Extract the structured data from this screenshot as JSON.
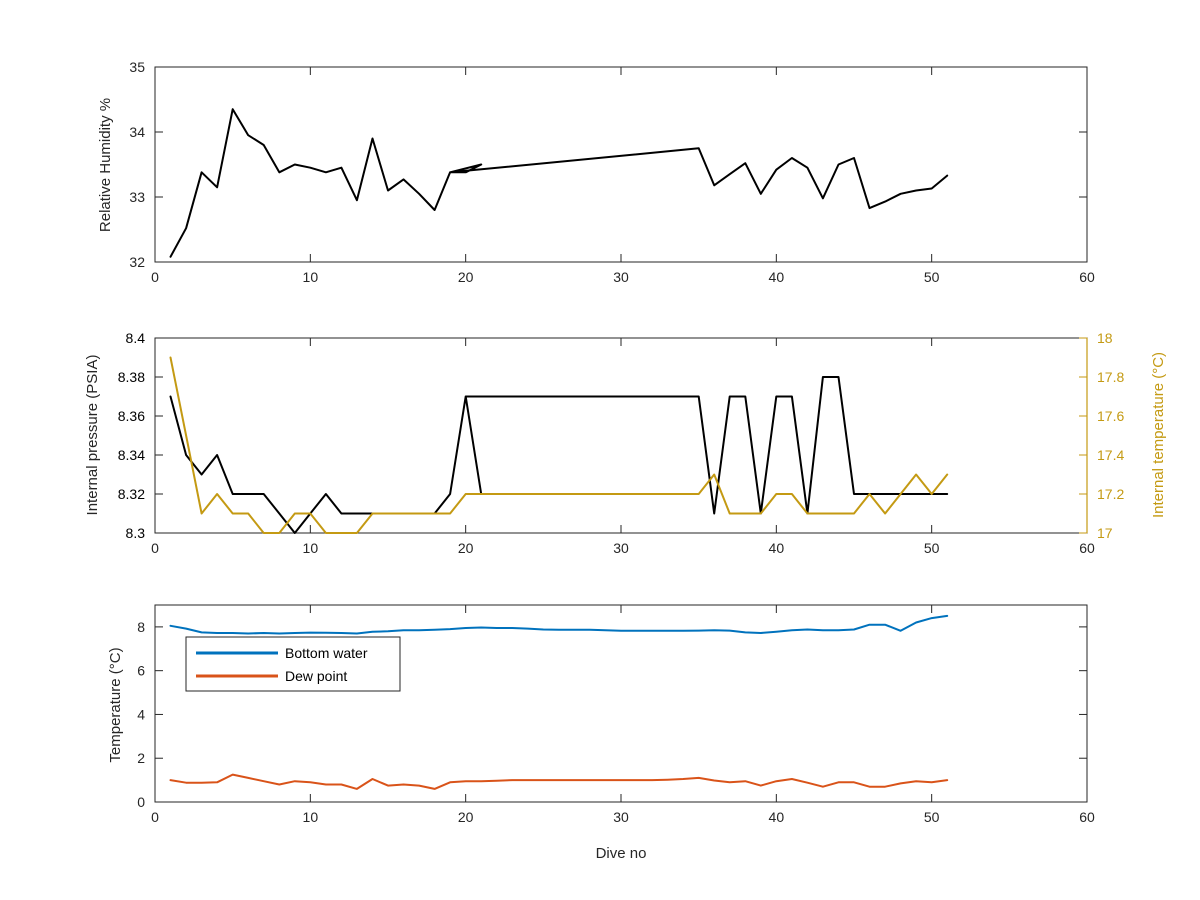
{
  "colors": {
    "pressure": "#000000",
    "internal_temp": "#C49A13",
    "bottom_water": "#0072BD",
    "dew_point": "#D95319",
    "axes": "#262626"
  },
  "chart_data": [
    {
      "type": "line",
      "xlabel": "",
      "ylabel": "Relative Humidity %",
      "xlim": [
        0,
        60
      ],
      "ylim": [
        32,
        35
      ],
      "xticks": [
        "0",
        "10",
        "20",
        "30",
        "40",
        "50",
        "60"
      ],
      "yticks": [
        "32",
        "33",
        "34",
        "35"
      ],
      "series": [
        {
          "x": [
            1,
            2,
            3,
            4,
            5,
            6,
            7,
            8,
            9,
            10,
            11,
            12,
            13,
            14,
            15,
            16,
            17,
            18,
            19,
            20,
            21,
            19,
            35,
            36,
            37,
            38,
            39,
            40,
            41,
            42,
            43,
            44,
            45,
            46,
            47,
            48,
            49,
            50,
            51
          ],
          "values": [
            32.08,
            32.52,
            33.38,
            33.15,
            34.35,
            33.95,
            33.8,
            33.38,
            33.5,
            33.45,
            33.38,
            33.45,
            32.95,
            33.9,
            33.1,
            33.27,
            33.05,
            32.8,
            33.38,
            33.38,
            33.5,
            33.38,
            33.75,
            33.18,
            33.35,
            33.52,
            33.05,
            33.42,
            33.6,
            33.45,
            32.98,
            33.5,
            33.6,
            32.83,
            32.93,
            33.05,
            33.1,
            33.13,
            33.33
          ]
        }
      ]
    },
    {
      "type": "line",
      "xlabel": "",
      "ylabel": "Internal pressure (PSIA)",
      "y2label": "Internal temperature (°C)",
      "xlim": [
        0,
        60
      ],
      "ylim": [
        8.3,
        8.4
      ],
      "y2lim": [
        17,
        18
      ],
      "xticks": [
        "0",
        "10",
        "20",
        "30",
        "40",
        "50",
        "60"
      ],
      "yticks": [
        "8.3",
        "8.32",
        "8.34",
        "8.36",
        "8.38",
        "8.4"
      ],
      "y2ticks": [
        "17",
        "17.2",
        "17.4",
        "17.6",
        "17.8",
        "18"
      ],
      "series": [
        {
          "axis": "left",
          "x": [
            1,
            2,
            3,
            4,
            5,
            6,
            7,
            8,
            9,
            10,
            11,
            12,
            13,
            14,
            15,
            16,
            17,
            18,
            19,
            20,
            21,
            20,
            35,
            36,
            37,
            38,
            39,
            40,
            41,
            42,
            43,
            44,
            45,
            46,
            47,
            48,
            49,
            50,
            51
          ],
          "values": [
            8.37,
            8.34,
            8.33,
            8.34,
            8.32,
            8.32,
            8.32,
            8.31,
            8.3,
            8.31,
            8.32,
            8.31,
            8.31,
            8.31,
            8.31,
            8.31,
            8.31,
            8.31,
            8.32,
            8.37,
            8.32,
            8.37,
            8.37,
            8.31,
            8.37,
            8.37,
            8.31,
            8.37,
            8.37,
            8.31,
            8.38,
            8.38,
            8.32,
            8.32,
            8.32,
            8.32,
            8.32,
            8.32,
            8.32
          ]
        },
        {
          "axis": "right",
          "x": [
            1,
            2,
            3,
            4,
            5,
            6,
            7,
            8,
            9,
            10,
            11,
            12,
            13,
            14,
            15,
            16,
            17,
            18,
            19,
            20,
            21,
            22,
            23,
            24,
            25,
            26,
            27,
            28,
            29,
            30,
            31,
            32,
            33,
            34,
            35,
            36,
            37,
            38,
            39,
            40,
            41,
            42,
            43,
            44,
            45,
            46,
            47,
            48,
            49,
            50,
            51
          ],
          "values": [
            17.9,
            17.5,
            17.1,
            17.2,
            17.1,
            17.1,
            17.0,
            17.0,
            17.1,
            17.1,
            17.0,
            17.0,
            17.0,
            17.1,
            17.1,
            17.1,
            17.1,
            17.1,
            17.1,
            17.2,
            17.2,
            17.2,
            17.2,
            17.2,
            17.2,
            17.2,
            17.2,
            17.2,
            17.2,
            17.2,
            17.2,
            17.2,
            17.2,
            17.2,
            17.2,
            17.3,
            17.1,
            17.1,
            17.1,
            17.2,
            17.2,
            17.1,
            17.1,
            17.1,
            17.1,
            17.2,
            17.1,
            17.2,
            17.3,
            17.2,
            17.3
          ]
        }
      ]
    },
    {
      "type": "line",
      "xlabel": "Dive no",
      "ylabel": "Temperature (°C)",
      "xlim": [
        0,
        60
      ],
      "ylim": [
        0,
        9
      ],
      "xticks": [
        "0",
        "10",
        "20",
        "30",
        "40",
        "50",
        "60"
      ],
      "yticks": [
        "0",
        "2",
        "4",
        "6",
        "8"
      ],
      "legend_position": "top-left",
      "series": [
        {
          "name": "Bottom water",
          "x": [
            1,
            2,
            3,
            4,
            5,
            6,
            7,
            8,
            9,
            10,
            11,
            12,
            13,
            14,
            15,
            16,
            17,
            18,
            19,
            20,
            21,
            22,
            23,
            24,
            25,
            26,
            27,
            28,
            29,
            30,
            31,
            32,
            33,
            34,
            35,
            36,
            37,
            38,
            39,
            40,
            41,
            42,
            43,
            44,
            45,
            46,
            47,
            48,
            49,
            50,
            51
          ],
          "values": [
            8.05,
            7.92,
            7.75,
            7.72,
            7.72,
            7.7,
            7.72,
            7.7,
            7.72,
            7.74,
            7.73,
            7.72,
            7.7,
            7.78,
            7.8,
            7.85,
            7.85,
            7.87,
            7.9,
            7.95,
            7.97,
            7.95,
            7.95,
            7.92,
            7.88,
            7.87,
            7.87,
            7.87,
            7.85,
            7.82,
            7.82,
            7.82,
            7.82,
            7.82,
            7.83,
            7.85,
            7.83,
            7.75,
            7.72,
            7.78,
            7.85,
            7.88,
            7.85,
            7.85,
            7.88,
            8.1,
            8.1,
            7.82,
            8.2,
            8.4,
            8.5
          ]
        },
        {
          "name": "Dew point",
          "x": [
            1,
            2,
            3,
            4,
            5,
            6,
            7,
            8,
            9,
            10,
            11,
            12,
            13,
            14,
            15,
            16,
            17,
            18,
            19,
            20,
            21,
            22,
            23,
            24,
            25,
            26,
            27,
            28,
            29,
            30,
            31,
            32,
            33,
            34,
            35,
            36,
            37,
            38,
            39,
            40,
            41,
            42,
            43,
            44,
            45,
            46,
            47,
            48,
            49,
            50,
            51
          ],
          "values": [
            1.0,
            0.88,
            0.88,
            0.9,
            1.25,
            1.1,
            0.95,
            0.8,
            0.95,
            0.9,
            0.8,
            0.8,
            0.6,
            1.05,
            0.75,
            0.8,
            0.75,
            0.6,
            0.9,
            0.95,
            0.95,
            0.97,
            1.0,
            1.0,
            1.0,
            1.0,
            1.0,
            1.0,
            1.0,
            1.0,
            1.0,
            1.0,
            1.02,
            1.05,
            1.1,
            0.98,
            0.9,
            0.95,
            0.75,
            0.95,
            1.05,
            0.88,
            0.7,
            0.9,
            0.9,
            0.7,
            0.7,
            0.85,
            0.95,
            0.9,
            1.0
          ]
        }
      ]
    }
  ]
}
